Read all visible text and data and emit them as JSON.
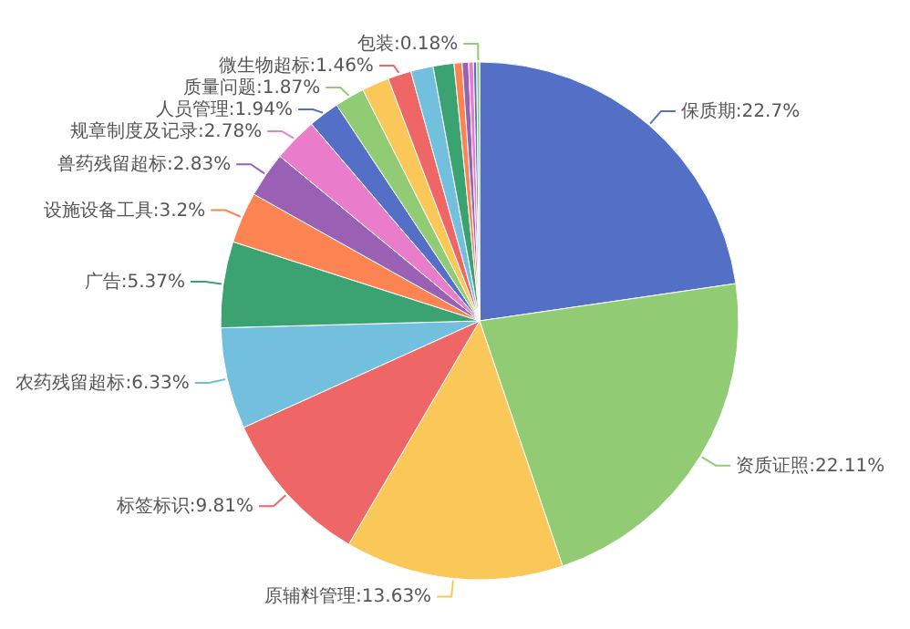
{
  "chart_data": {
    "type": "pie",
    "categories": [
      "保质期",
      "资质证照",
      "原辅料管理",
      "标签标识",
      "农药残留超标",
      "广告",
      "设施设备工具",
      "兽药残留超标",
      "规章制度及记录",
      "人员管理",
      "质量问题",
      null,
      "微生物超标",
      null,
      null,
      null,
      null,
      null,
      null,
      "包装"
    ],
    "values": [
      22.7,
      22.11,
      13.63,
      9.81,
      6.33,
      5.37,
      3.2,
      2.83,
      2.78,
      1.94,
      1.87,
      1.7,
      1.46,
      1.4,
      1.3,
      0.5,
      0.4,
      0.3,
      0.2,
      0.18
    ],
    "value_labels": [
      "22.7%",
      "22.11%",
      "13.63%",
      "9.81%",
      "6.33%",
      "5.37%",
      "3.2%",
      "2.83%",
      "2.78%",
      "1.94%",
      "1.87%",
      null,
      "1.46%",
      null,
      null,
      null,
      null,
      null,
      null,
      "0.18%"
    ],
    "colors": [
      "#5470c6",
      "#91cc75",
      "#fac858",
      "#ee6666",
      "#73c0de",
      "#3ba272",
      "#fc8452",
      "#9a60b4",
      "#ea7ccc",
      "#5470c6",
      "#91cc75",
      "#fac858",
      "#ee6666",
      "#73c0de",
      "#3ba272",
      "#fc8452",
      "#9a60b4",
      "#ea7ccc",
      "#5470c6",
      "#91cc75"
    ]
  }
}
